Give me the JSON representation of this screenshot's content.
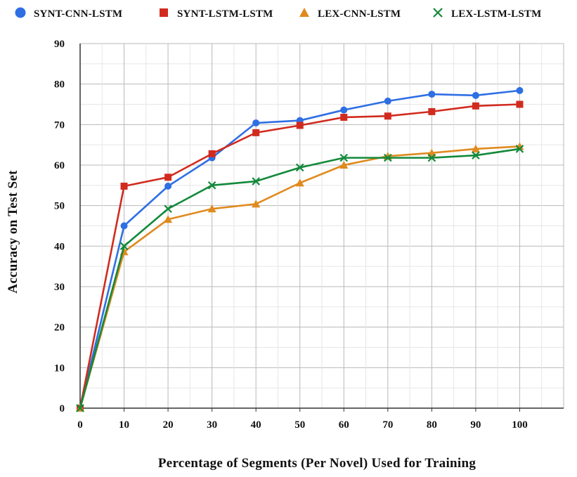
{
  "chart_data": {
    "type": "line",
    "title": "",
    "xlabel": "Percentage of Segments (Per Novel) Used for Training",
    "ylabel": "Accuracy on Test Set",
    "x": [
      0,
      10,
      20,
      30,
      40,
      50,
      60,
      70,
      80,
      90,
      100
    ],
    "xlim": [
      0,
      110
    ],
    "ylim": [
      0,
      90
    ],
    "xticks": [
      0,
      10,
      20,
      30,
      40,
      50,
      60,
      70,
      80,
      90,
      100
    ],
    "yticks": [
      0,
      10,
      20,
      30,
      40,
      50,
      60,
      70,
      80,
      90
    ],
    "grid": true,
    "legend_position": "top",
    "series": [
      {
        "name": "SYNT-CNN-LSTM",
        "color": "#2f6fe4",
        "marker": "circle",
        "values": [
          0,
          45,
          54.8,
          61.8,
          70.4,
          71,
          73.6,
          75.8,
          77.5,
          77.2,
          78.4
        ]
      },
      {
        "name": "SYNT-LSTM-LSTM",
        "color": "#d12b1f",
        "marker": "square",
        "values": [
          0,
          54.8,
          57,
          62.8,
          68,
          69.8,
          71.8,
          72.1,
          73.2,
          74.6,
          75
        ]
      },
      {
        "name": "LEX-CNN-LSTM",
        "color": "#e08a1e",
        "marker": "triangle",
        "values": [
          0,
          38.6,
          46.6,
          49.2,
          50.4,
          55.6,
          60,
          62.2,
          63,
          64,
          64.6
        ]
      },
      {
        "name": "LEX-LSTM-LSTM",
        "color": "#13893b",
        "marker": "x",
        "values": [
          0,
          40,
          49.2,
          55,
          56,
          59.4,
          61.8,
          61.8,
          61.8,
          62.4,
          64
        ]
      }
    ]
  }
}
